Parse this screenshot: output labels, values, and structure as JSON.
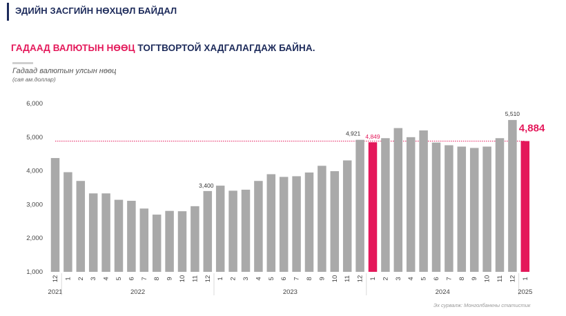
{
  "header": {
    "title": "ЭДИЙН ЗАСГИЙН НӨХЦӨЛ БАЙДАЛ"
  },
  "headline": {
    "highlight": "ГАДААД ВАЛЮТЫН НӨӨЦ",
    "rest": " ТОГТВОРТОЙ ХАДГАЛАГДАЖ БАЙНА."
  },
  "source": "Эх сурвалж: Монголбанкны статистик",
  "colors": {
    "bar": "#a9a9a9",
    "highlight": "#e4185a",
    "navy": "#1c2a5a"
  },
  "chart_data": {
    "type": "bar",
    "ylabel": "Гадаад валютын улсын нөөц",
    "yunit": "(сая ам.доллар)",
    "ylim": [
      1000,
      6000
    ],
    "yticks": [
      "1,000",
      "2,000",
      "3,000",
      "4,000",
      "5,000",
      "6,000"
    ],
    "categories": [
      "12",
      "1",
      "2",
      "3",
      "4",
      "5",
      "6",
      "7",
      "8",
      "9",
      "10",
      "11",
      "12",
      "1",
      "2",
      "3",
      "4",
      "5",
      "6",
      "7",
      "8",
      "9",
      "10",
      "11",
      "12",
      "1",
      "2",
      "3",
      "4",
      "5",
      "6",
      "7",
      "8",
      "9",
      "10",
      "11",
      "12",
      "1"
    ],
    "values": [
      4380,
      3960,
      3700,
      3330,
      3330,
      3140,
      3110,
      2880,
      2700,
      2810,
      2800,
      2950,
      3400,
      3560,
      3410,
      3440,
      3700,
      3900,
      3820,
      3840,
      3950,
      4150,
      3990,
      4310,
      4921,
      4849,
      4970,
      5270,
      5000,
      5200,
      4840,
      4760,
      4720,
      4680,
      4720,
      4970,
      5510,
      4884
    ],
    "highlight_index": [
      25,
      37
    ],
    "years": [
      {
        "label": "2021",
        "from": 0,
        "to": 0
      },
      {
        "label": "2022",
        "from": 1,
        "to": 12
      },
      {
        "label": "2023",
        "from": 13,
        "to": 24
      },
      {
        "label": "2024",
        "from": 25,
        "to": 36
      },
      {
        "label": "2025",
        "from": 37,
        "to": 37
      }
    ],
    "annotations": [
      {
        "index": 12,
        "text": "3,400"
      },
      {
        "index": 24,
        "text": "4,921"
      },
      {
        "index": 25,
        "text": "4,849"
      },
      {
        "index": 36,
        "text": "5,510"
      },
      {
        "index": 37,
        "text": "4,884"
      }
    ],
    "reference_line": 4884
  }
}
